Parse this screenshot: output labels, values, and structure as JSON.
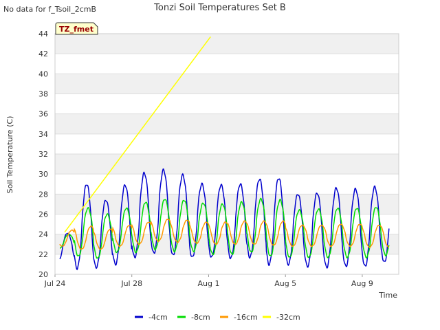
{
  "header": {
    "no_data_note": "No data for f_Tsoil_2cmB"
  },
  "chart_data": {
    "type": "line",
    "title": "Tonzi Soil Temperatures Set B",
    "xlabel": "Time",
    "ylabel": "Soil Temperature (C)",
    "ylim": [
      20,
      44
    ],
    "yticks": [
      20,
      22,
      24,
      26,
      28,
      30,
      32,
      34,
      36,
      38,
      40,
      42,
      44
    ],
    "xlim_days": [
      0,
      17.9
    ],
    "xticks": [
      {
        "label": "Jul 24",
        "day": 0
      },
      {
        "label": "Jul 28",
        "day": 4
      },
      {
        "label": "Aug 1",
        "day": 8
      },
      {
        "label": "Aug 5",
        "day": 12
      },
      {
        "label": "Aug 9",
        "day": 16
      }
    ],
    "grid": true,
    "banded_background": true,
    "legend_position": "bottom",
    "badge_label": "TZ_fmet",
    "series": [
      {
        "name": "-4cm",
        "color": "#0000cc",
        "daily_minima": [
          21.3,
          20.6,
          20.7,
          21.0,
          21.7,
          22.1,
          21.9,
          21.7,
          21.7,
          21.6,
          21.7,
          21.0,
          21.0,
          20.8,
          20.7,
          20.8,
          20.8,
          21.2
        ],
        "daily_maxima": [
          null,
          29.0,
          27.4,
          28.9,
          30.1,
          30.4,
          29.9,
          29.0,
          28.9,
          29.0,
          29.5,
          29.6,
          28.0,
          28.1,
          28.6,
          28.5,
          28.7,
          29.0
        ]
      },
      {
        "name": "-8cm",
        "color": "#00dd00",
        "daily_minima": [
          22.6,
          21.8,
          21.6,
          22.2,
          22.2,
          22.5,
          22.3,
          22.3,
          22.0,
          22.0,
          22.2,
          21.8,
          21.7,
          21.7,
          21.7,
          21.7,
          21.7,
          21.9
        ],
        "daily_maxima": [
          24.0,
          26.6,
          26.0,
          26.6,
          27.2,
          27.5,
          27.4,
          27.1,
          27.0,
          27.2,
          27.5,
          27.4,
          26.4,
          26.5,
          26.6,
          26.6,
          26.7,
          26.8
        ]
      },
      {
        "name": "-16cm",
        "color": "#ff9900",
        "daily_minima": [
          22.8,
          22.5,
          22.5,
          22.8,
          23.0,
          23.3,
          23.2,
          23.1,
          23.0,
          23.0,
          23.0,
          22.9,
          22.8,
          22.8,
          22.8,
          22.8,
          22.7,
          22.7
        ],
        "daily_maxima": [
          24.4,
          24.8,
          24.5,
          24.9,
          25.2,
          25.5,
          25.4,
          25.2,
          25.2,
          25.3,
          25.3,
          25.3,
          24.9,
          24.9,
          25.0,
          25.0,
          24.9,
          25.0
        ]
      },
      {
        "name": "-32cm",
        "color": "#ffff00",
        "x": [
          0.5,
          8.1
        ],
        "y": [
          24.2,
          43.7
        ]
      }
    ]
  }
}
